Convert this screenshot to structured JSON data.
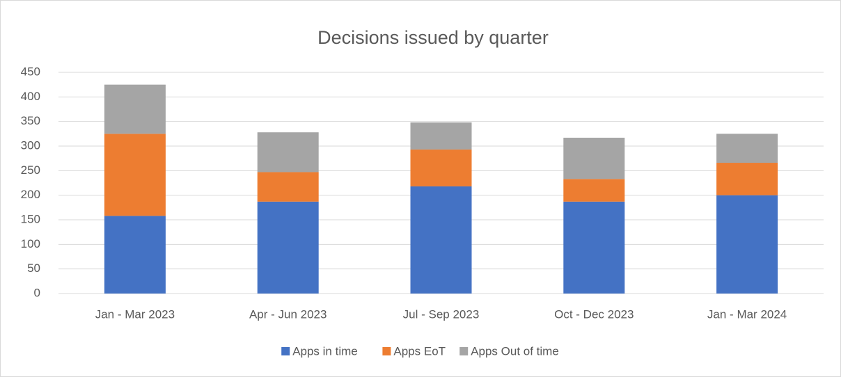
{
  "chart_data": {
    "type": "stacked_bar",
    "title": "Decisions issued by quarter",
    "categories": [
      "Jan - Mar 2023",
      "Apr - Jun 2023",
      "Jul - Sep 2023",
      "Oct - Dec 2023",
      "Jan - Mar 2024"
    ],
    "series": [
      {
        "name": "Apps in time",
        "color": "#4472c4",
        "values": [
          158,
          187,
          218,
          187,
          200
        ]
      },
      {
        "name": "Apps EoT",
        "color": "#ed7d31",
        "values": [
          167,
          60,
          75,
          46,
          66
        ]
      },
      {
        "name": "Apps Out of time",
        "color": "#a5a5a5",
        "values": [
          100,
          81,
          55,
          84,
          59
        ]
      }
    ],
    "ylim": [
      0,
      450
    ],
    "yticks": [
      0,
      50,
      100,
      150,
      200,
      250,
      300,
      350,
      400,
      450
    ],
    "grid": true,
    "legend": "bottom"
  }
}
